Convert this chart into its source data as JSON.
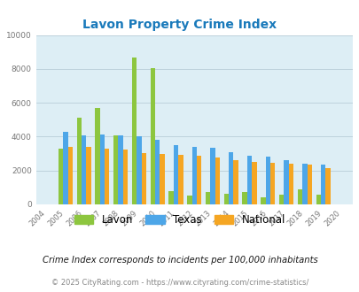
{
  "title": "Lavon Property Crime Index",
  "years": [
    2004,
    2005,
    2006,
    2007,
    2008,
    2009,
    2010,
    2011,
    2012,
    2013,
    2014,
    2015,
    2016,
    2017,
    2018,
    2019,
    2020
  ],
  "lavon": [
    0,
    3300,
    5100,
    5700,
    4050,
    8650,
    8050,
    800,
    500,
    720,
    650,
    730,
    400,
    580,
    880,
    560,
    0
  ],
  "texas": [
    0,
    4300,
    4080,
    4120,
    4050,
    4020,
    3820,
    3520,
    3380,
    3330,
    3080,
    2870,
    2800,
    2600,
    2380,
    2360,
    0
  ],
  "national": [
    0,
    3400,
    3370,
    3280,
    3230,
    3050,
    2980,
    2900,
    2870,
    2760,
    2620,
    2510,
    2470,
    2400,
    2340,
    2130,
    0
  ],
  "lavon_color": "#8dc63f",
  "texas_color": "#4da6e8",
  "national_color": "#f5a623",
  "bg_color": "#ddeef5",
  "ylim": [
    0,
    10000
  ],
  "yticks": [
    0,
    2000,
    4000,
    6000,
    8000,
    10000
  ],
  "footnote1": "Crime Index corresponds to incidents per 100,000 inhabitants",
  "footnote2": "© 2025 CityRating.com - https://www.cityrating.com/crime-statistics/",
  "title_color": "#1a7abb",
  "footnote1_color": "#1a1a1a",
  "footnote2_color": "#888888",
  "bar_width": 0.26,
  "grid_color": "#b8cdd8"
}
